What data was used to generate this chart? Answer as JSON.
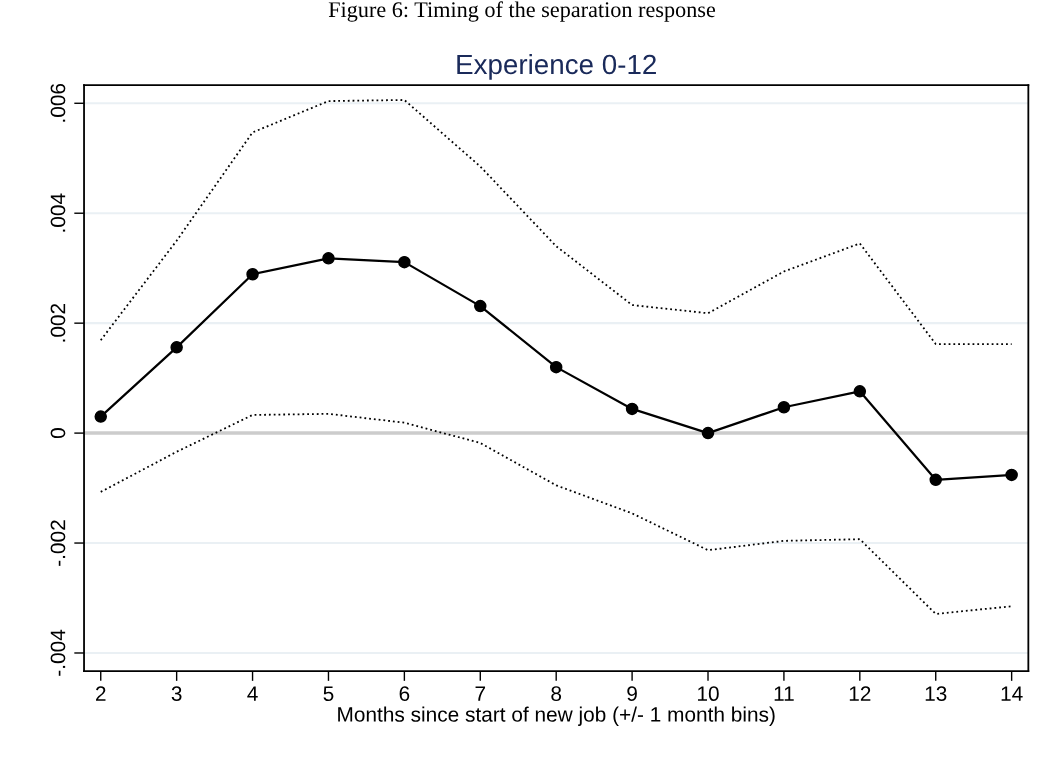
{
  "chart_data": {
    "type": "line",
    "title": "Experience 0-12",
    "xlabel": "Months since start of new job (+/- 1 month bins)",
    "annotations": [
      "Figure 6: Timing of the separation response"
    ],
    "x": [
      2,
      3,
      4,
      5,
      6,
      7,
      8,
      9,
      10,
      11,
      12,
      13,
      14
    ],
    "series": [
      {
        "color": "#000000",
        "marker": "circle",
        "line_style": "solid",
        "values": [
          0.0003,
          0.00156,
          0.00289,
          0.00318,
          0.00311,
          0.00231,
          0.0012,
          0.00044,
          0.0,
          0.00047,
          0.00076,
          -0.00085,
          -0.00076
        ]
      },
      {
        "color": "#000000",
        "marker": "none",
        "line_style": "dotted",
        "values": [
          0.00169,
          0.0035,
          0.00547,
          0.00604,
          0.00606,
          0.00485,
          0.0034,
          0.00233,
          0.00218,
          0.00294,
          0.00345,
          0.00162,
          0.00162
        ]
      },
      {
        "color": "#000000",
        "marker": "none",
        "line_style": "dotted",
        "values": [
          -0.00107,
          -0.00034,
          0.00033,
          0.00035,
          0.00019,
          -0.00018,
          -0.00095,
          -0.00146,
          -0.00213,
          -0.00196,
          -0.00193,
          -0.00329,
          -0.00315
        ]
      }
    ],
    "xlim": [
      1.78,
      14.22
    ],
    "xticks": [
      2,
      3,
      4,
      5,
      6,
      7,
      8,
      9,
      10,
      11,
      12,
      13,
      14
    ],
    "ylim": [
      -0.00433,
      0.00633
    ],
    "yticks": [
      {
        "value": -0.004,
        "label": "-.004"
      },
      {
        "value": -0.002,
        "label": "-.002"
      },
      0,
      {
        "value": 0.002,
        "label": ".002"
      },
      {
        "value": 0.004,
        "label": ".004"
      },
      {
        "value": 0.006,
        "label": ".006"
      }
    ],
    "grid": "y",
    "ref_lines": [
      {
        "axis": "y",
        "value": 0,
        "color": "#cccccc",
        "line_style": "solid"
      }
    ]
  }
}
